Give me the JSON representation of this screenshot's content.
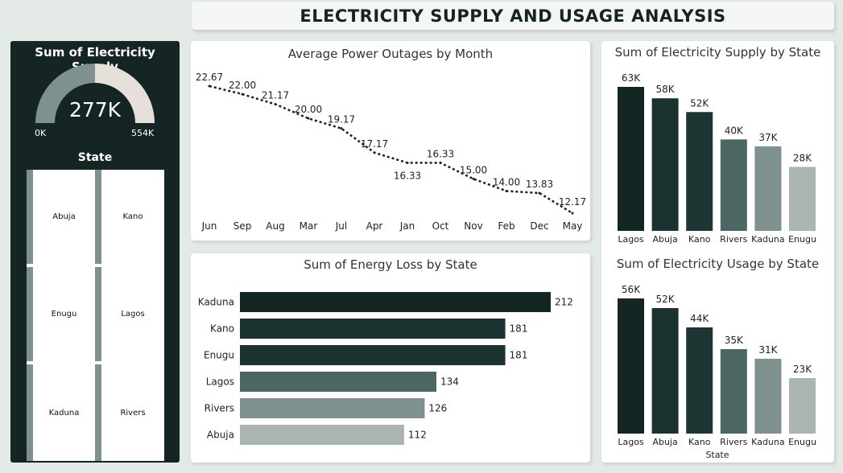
{
  "title": "ELECTRICITY SUPPLY AND USAGE ANALYSIS",
  "gauge": {
    "title": "Sum of Electricity Supply",
    "value_label": "277K",
    "value": 277,
    "max": 554,
    "min_label": "0K",
    "max_label": "554K",
    "fill_color": "#7f918f",
    "rest_color": "#e6e0db"
  },
  "slicer": {
    "title": "State",
    "items": [
      "Abuja",
      "Kano",
      "Enugu",
      "Lagos",
      "Kaduna",
      "Rivers"
    ]
  },
  "chart_data": [
    {
      "type": "line",
      "title": "Average Power Outages by Month",
      "categories": [
        "Jun",
        "Sep",
        "Aug",
        "Mar",
        "Jul",
        "Apr",
        "Jan",
        "Oct",
        "Nov",
        "Feb",
        "Dec",
        "May"
      ],
      "values": [
        22.67,
        22.0,
        21.17,
        20.0,
        19.17,
        17.17,
        16.33,
        16.33,
        15.0,
        14.0,
        13.83,
        12.17
      ],
      "value_labels": [
        "22.67",
        "22.00",
        "21.17",
        "20.00",
        "19.17",
        "17.17",
        "16.33",
        "16.33",
        "15.00",
        "14.00",
        "13.83",
        "12.17"
      ],
      "ylim": [
        12.17,
        22.67
      ],
      "line_style": "dotted",
      "color": "#162424"
    },
    {
      "type": "bar",
      "orientation": "horizontal",
      "title": "Sum of Energy Loss by State",
      "categories": [
        "Kaduna",
        "Kano",
        "Enugu",
        "Lagos",
        "Rivers",
        "Abuja"
      ],
      "values": [
        212,
        181,
        181,
        134,
        126,
        112
      ],
      "value_labels": [
        "212",
        "181",
        "181",
        "134",
        "126",
        "112"
      ],
      "colors": [
        "#132624",
        "#1b3230",
        "#1b3230",
        "#4c6664",
        "#7f918f",
        "#aab5b3"
      ],
      "xlim": [
        0,
        212
      ]
    },
    {
      "type": "bar",
      "title": "Sum of Electricity Supply by State",
      "categories": [
        "Lagos",
        "Abuja",
        "Kano",
        "Rivers",
        "Kaduna",
        "Enugu"
      ],
      "values": [
        63,
        58,
        52,
        40,
        37,
        28
      ],
      "value_labels": [
        "63K",
        "58K",
        "52K",
        "40K",
        "37K",
        "28K"
      ],
      "colors": [
        "#132624",
        "#1b3230",
        "#1e3533",
        "#4c6664",
        "#7f918f",
        "#aab5b3"
      ],
      "ylim": [
        0,
        63
      ]
    },
    {
      "type": "bar",
      "title": "Sum of Electricity Usage by State",
      "xlabel": "State",
      "categories": [
        "Lagos",
        "Abuja",
        "Kano",
        "Rivers",
        "Kaduna",
        "Enugu"
      ],
      "values": [
        56,
        52,
        44,
        35,
        31,
        23
      ],
      "value_labels": [
        "56K",
        "52K",
        "44K",
        "35K",
        "31K",
        "23K"
      ],
      "colors": [
        "#132624",
        "#1b3230",
        "#1e3533",
        "#4c6664",
        "#7f918f",
        "#aab5b3"
      ],
      "ylim": [
        0,
        56
      ]
    }
  ]
}
